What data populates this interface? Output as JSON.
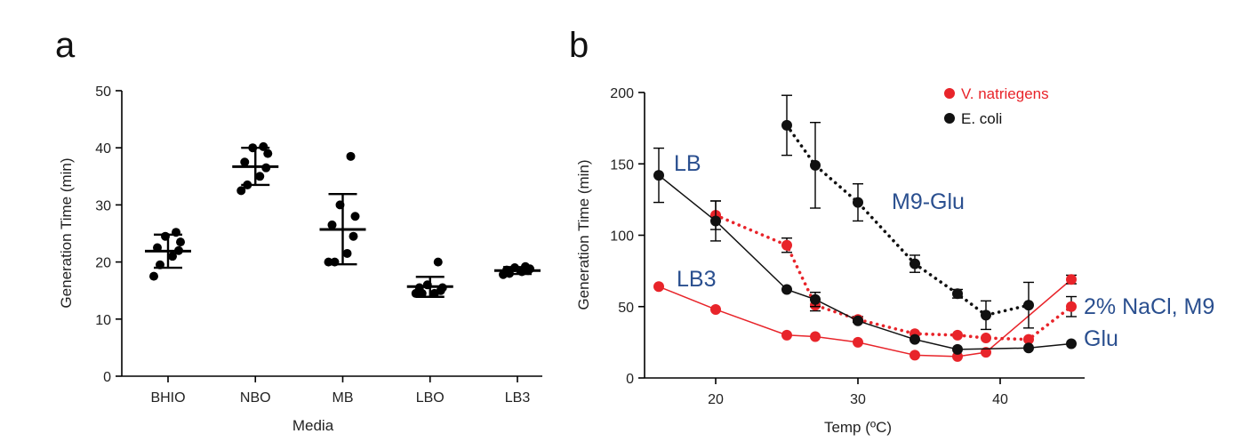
{
  "chart_data": [
    {
      "type": "scatter",
      "panel_label": "a",
      "xlabel": "Media",
      "ylabel": "Generation Time (min)",
      "ylim": [
        0,
        50
      ],
      "yticks": [
        "0",
        "10",
        "20",
        "30",
        "40",
        "50"
      ],
      "categories": [
        "BHIO",
        "NBO",
        "MB",
        "LBO",
        "LB3"
      ],
      "groups": [
        {
          "category": "BHIO",
          "points": [
            17.5,
            19.5,
            21.0,
            22.0,
            22.5,
            23.5,
            24.5,
            25.2
          ],
          "mean": 21.9,
          "sd_low": 19.0,
          "sd_high": 24.8
        },
        {
          "category": "NBO",
          "points": [
            32.5,
            33.5,
            35.0,
            36.5,
            37.5,
            39.0,
            40.0,
            40.2
          ],
          "mean": 36.7,
          "sd_low": 33.5,
          "sd_high": 40.0
        },
        {
          "category": "MB",
          "points": [
            20.0,
            20.0,
            21.5,
            24.5,
            26.5,
            28.0,
            30.0,
            38.5
          ],
          "mean": 25.7,
          "sd_low": 19.6,
          "sd_high": 31.9
        },
        {
          "category": "LBO",
          "points": [
            14.5,
            14.5,
            14.5,
            15.0,
            15.5,
            15.5,
            16.0,
            20.0
          ],
          "mean": 15.7,
          "sd_low": 13.9,
          "sd_high": 17.4
        },
        {
          "category": "LB3",
          "points": [
            17.8,
            18.0,
            18.3,
            18.5,
            18.6,
            18.8,
            19.0,
            19.2
          ],
          "mean": 18.5,
          "sd_low": 17.9,
          "sd_high": 19.1
        }
      ]
    },
    {
      "type": "line",
      "panel_label": "b",
      "xlabel": "Temp (ºC)",
      "ylabel": "Generation Time (min)",
      "xlim": [
        16,
        45
      ],
      "ylim": [
        0,
        200
      ],
      "xticks": [
        "20",
        "30",
        "40"
      ],
      "yticks": [
        "0",
        "50",
        "100",
        "150",
        "200"
      ],
      "legend": [
        {
          "label": "V. natriegens",
          "color": "#e8242a"
        },
        {
          "label": "E. coli",
          "color": "#111111"
        }
      ],
      "annotations": [
        "LB",
        "M9-Glu",
        "LB3",
        "2% NaCl, M9",
        "Glu"
      ],
      "series": [
        {
          "color": "#e8242a",
          "style": "solid",
          "points": [
            [
              16,
              64
            ],
            [
              20,
              48
            ],
            [
              25,
              30
            ],
            [
              27,
              29
            ],
            [
              30,
              25
            ],
            [
              34,
              16
            ],
            [
              37,
              15
            ],
            [
              39,
              18
            ],
            [
              45,
              69
            ]
          ],
          "err": [
            0,
            0,
            0,
            0,
            0,
            0,
            0,
            0,
            3
          ]
        },
        {
          "color": "#e8242a",
          "style": "dotted",
          "points": [
            [
              20,
              114
            ],
            [
              25,
              93
            ],
            [
              27,
              51
            ],
            [
              30,
              41
            ],
            [
              34,
              31
            ],
            [
              37,
              30
            ],
            [
              39,
              28
            ],
            [
              42,
              27
            ],
            [
              45,
              50
            ]
          ],
          "err": [
            10,
            5,
            4,
            2,
            0,
            0,
            0,
            0,
            7
          ]
        },
        {
          "color": "#111111",
          "style": "solid",
          "points": [
            [
              16,
              142
            ],
            [
              20,
              110
            ],
            [
              25,
              62
            ],
            [
              27,
              55
            ],
            [
              30,
              40
            ],
            [
              34,
              27
            ],
            [
              37,
              20
            ],
            [
              42,
              21
            ],
            [
              45,
              24
            ]
          ],
          "err": [
            19,
            14,
            0,
            5,
            0,
            0,
            0,
            0,
            0
          ]
        },
        {
          "color": "#111111",
          "style": "dotted",
          "points": [
            [
              25,
              177
            ],
            [
              27,
              149
            ],
            [
              30,
              123
            ],
            [
              34,
              80
            ],
            [
              37,
              59
            ],
            [
              39,
              44
            ],
            [
              42,
              51
            ]
          ],
          "err": [
            21,
            30,
            13,
            6,
            3,
            10,
            16
          ]
        }
      ]
    }
  ]
}
